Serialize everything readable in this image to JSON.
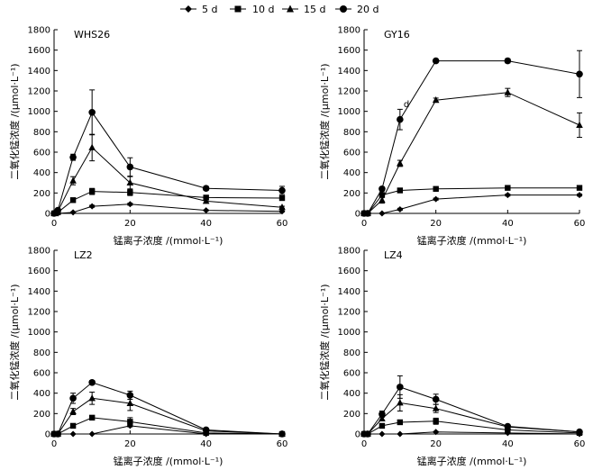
{
  "legend": {
    "entries": [
      "5 d",
      "10 d",
      "15 d",
      "20 d"
    ]
  },
  "chart_data": [
    {
      "type": "line",
      "title": "WHS26",
      "xlabel": "锰离子浓度 /(mmol·L⁻¹)",
      "ylabel": "二氧化锰浓度 /(μmol·L⁻¹)",
      "xlim": [
        0,
        60
      ],
      "ylim": [
        0,
        1800
      ],
      "xticks": [
        0,
        20,
        40,
        60
      ],
      "yticks": [
        0,
        200,
        400,
        600,
        800,
        1000,
        1200,
        1400,
        1600,
        1800
      ],
      "x": [
        0,
        1,
        5,
        10,
        20,
        40,
        60
      ],
      "annotations": [],
      "series": [
        {
          "name": "5 d",
          "marker": "diamond",
          "values": [
            0,
            0,
            10,
            70,
            90,
            30,
            20
          ],
          "errors": [
            0,
            0,
            5,
            10,
            10,
            5,
            5
          ]
        },
        {
          "name": "10 d",
          "marker": "square",
          "values": [
            0,
            10,
            130,
            215,
            205,
            155,
            150
          ],
          "errors": [
            0,
            5,
            20,
            30,
            30,
            15,
            15
          ]
        },
        {
          "name": "15 d",
          "marker": "triangle",
          "values": [
            0,
            20,
            320,
            645,
            300,
            120,
            60
          ],
          "errors": [
            0,
            5,
            40,
            130,
            60,
            20,
            10
          ]
        },
        {
          "name": "20 d",
          "marker": "circle",
          "values": [
            0,
            30,
            550,
            990,
            455,
            245,
            225
          ],
          "errors": [
            0,
            5,
            30,
            220,
            90,
            20,
            40
          ]
        }
      ]
    },
    {
      "type": "line",
      "title": "GY16",
      "xlabel": "锰离子浓度 /(mmol·L⁻¹)",
      "ylabel": "二氧化锰浓度 /(μmol·L⁻¹)",
      "xlim": [
        0,
        60
      ],
      "ylim": [
        0,
        1800
      ],
      "xticks": [
        0,
        20,
        40,
        60
      ],
      "yticks": [
        0,
        200,
        400,
        600,
        800,
        1000,
        1200,
        1400,
        1600,
        1800
      ],
      "x": [
        0,
        1,
        5,
        10,
        20,
        40,
        60
      ],
      "annotations": [
        {
          "text": "d",
          "x": 11,
          "y": 1040
        }
      ],
      "series": [
        {
          "name": "5 d",
          "marker": "diamond",
          "values": [
            0,
            0,
            0,
            40,
            140,
            180,
            180
          ],
          "errors": [
            0,
            0,
            5,
            10,
            10,
            10,
            10
          ]
        },
        {
          "name": "10 d",
          "marker": "square",
          "values": [
            0,
            0,
            180,
            225,
            240,
            250,
            250
          ],
          "errors": [
            0,
            0,
            20,
            20,
            10,
            10,
            10
          ]
        },
        {
          "name": "15 d",
          "marker": "triangle",
          "values": [
            0,
            0,
            130,
            490,
            1110,
            1185,
            865
          ],
          "errors": [
            0,
            0,
            30,
            30,
            20,
            40,
            120
          ]
        },
        {
          "name": "20 d",
          "marker": "circle",
          "values": [
            0,
            0,
            240,
            920,
            1495,
            1495,
            1365
          ],
          "errors": [
            0,
            0,
            20,
            100,
            10,
            20,
            230
          ]
        }
      ]
    },
    {
      "type": "line",
      "title": "LZ2",
      "xlabel": "锰离子浓度 /(mmol·L⁻¹)",
      "ylabel": "二氧化锰浓度 /(μmol·L⁻¹)",
      "xlim": [
        0,
        60
      ],
      "ylim": [
        0,
        1800
      ],
      "xticks": [
        0,
        20,
        40,
        60
      ],
      "yticks": [
        0,
        200,
        400,
        600,
        800,
        1000,
        1200,
        1400,
        1600,
        1800
      ],
      "x": [
        0,
        1,
        5,
        10,
        20,
        40,
        60
      ],
      "annotations": [],
      "series": [
        {
          "name": "5 d",
          "marker": "diamond",
          "values": [
            0,
            0,
            0,
            0,
            80,
            0,
            0
          ],
          "errors": [
            0,
            0,
            0,
            0,
            10,
            0,
            0
          ]
        },
        {
          "name": "10 d",
          "marker": "square",
          "values": [
            0,
            0,
            80,
            160,
            120,
            10,
            0
          ],
          "errors": [
            0,
            0,
            10,
            15,
            40,
            5,
            0
          ]
        },
        {
          "name": "15 d",
          "marker": "triangle",
          "values": [
            0,
            0,
            220,
            350,
            300,
            30,
            0
          ],
          "errors": [
            0,
            0,
            30,
            60,
            70,
            10,
            0
          ]
        },
        {
          "name": "20 d",
          "marker": "circle",
          "values": [
            0,
            0,
            350,
            505,
            380,
            40,
            0
          ],
          "errors": [
            0,
            0,
            50,
            20,
            40,
            10,
            0
          ]
        }
      ]
    },
    {
      "type": "line",
      "title": "LZ4",
      "xlabel": "锰离子浓度 /(mmol·L⁻¹)",
      "ylabel": "二氧化锰浓度 /(μmol·L⁻¹)",
      "xlim": [
        0,
        60
      ],
      "ylim": [
        0,
        1800
      ],
      "xticks": [
        0,
        20,
        40,
        60
      ],
      "yticks": [
        0,
        200,
        400,
        600,
        800,
        1000,
        1200,
        1400,
        1600,
        1800
      ],
      "x": [
        0,
        1,
        5,
        10,
        20,
        40,
        60
      ],
      "annotations": [],
      "series": [
        {
          "name": "5 d",
          "marker": "diamond",
          "values": [
            0,
            0,
            0,
            0,
            20,
            10,
            0
          ],
          "errors": [
            0,
            0,
            0,
            0,
            5,
            5,
            0
          ]
        },
        {
          "name": "10 d",
          "marker": "square",
          "values": [
            0,
            0,
            80,
            115,
            125,
            40,
            10
          ],
          "errors": [
            0,
            0,
            10,
            20,
            30,
            10,
            5
          ]
        },
        {
          "name": "15 d",
          "marker": "triangle",
          "values": [
            0,
            0,
            150,
            305,
            250,
            70,
            20
          ],
          "errors": [
            0,
            0,
            20,
            80,
            40,
            10,
            10
          ]
        },
        {
          "name": "20 d",
          "marker": "circle",
          "values": [
            0,
            0,
            195,
            460,
            340,
            75,
            20
          ],
          "errors": [
            0,
            0,
            30,
            110,
            50,
            10,
            10
          ]
        }
      ]
    }
  ]
}
